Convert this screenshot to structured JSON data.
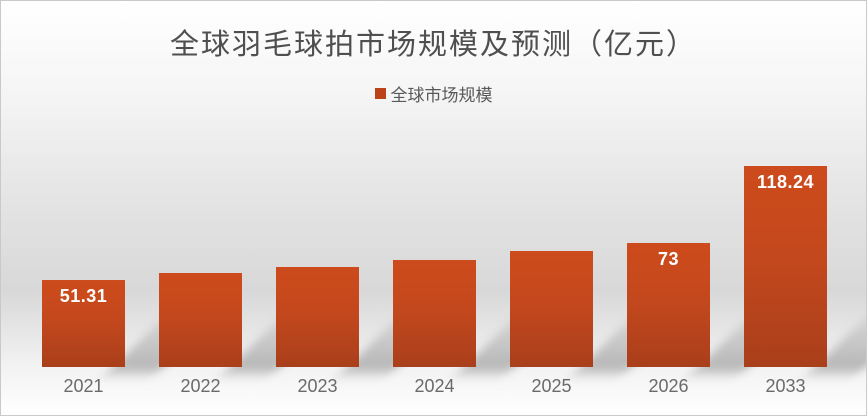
{
  "chart_data": {
    "type": "bar",
    "title": "全球羽毛球拍市场规模及预测（亿元）",
    "legend": {
      "label": "全球市场规模",
      "swatch_color": "#bb4317",
      "position": "top-center"
    },
    "categories": [
      "2021",
      "2022",
      "2023",
      "2024",
      "2025",
      "2026",
      "2033"
    ],
    "series": [
      {
        "name": "全球市场规模",
        "values": [
          51.31,
          55,
          59,
          63,
          68,
          73,
          118.24
        ],
        "data_labels": [
          "51.31",
          "",
          "",
          "",
          "",
          "73",
          "118.24"
        ]
      }
    ],
    "xlabel": "",
    "ylabel": "",
    "ylim": [
      0,
      130
    ],
    "grid": false,
    "axis_lines": false,
    "colors": {
      "bar_gradient_top": "#cd4b1c",
      "bar_gradient_bottom": "#a93f1b",
      "value_label_text": "#ffffff",
      "title_text": "#4f4f4f",
      "legend_text": "#595959",
      "axis_tick_text": "#6a6a6a"
    }
  }
}
